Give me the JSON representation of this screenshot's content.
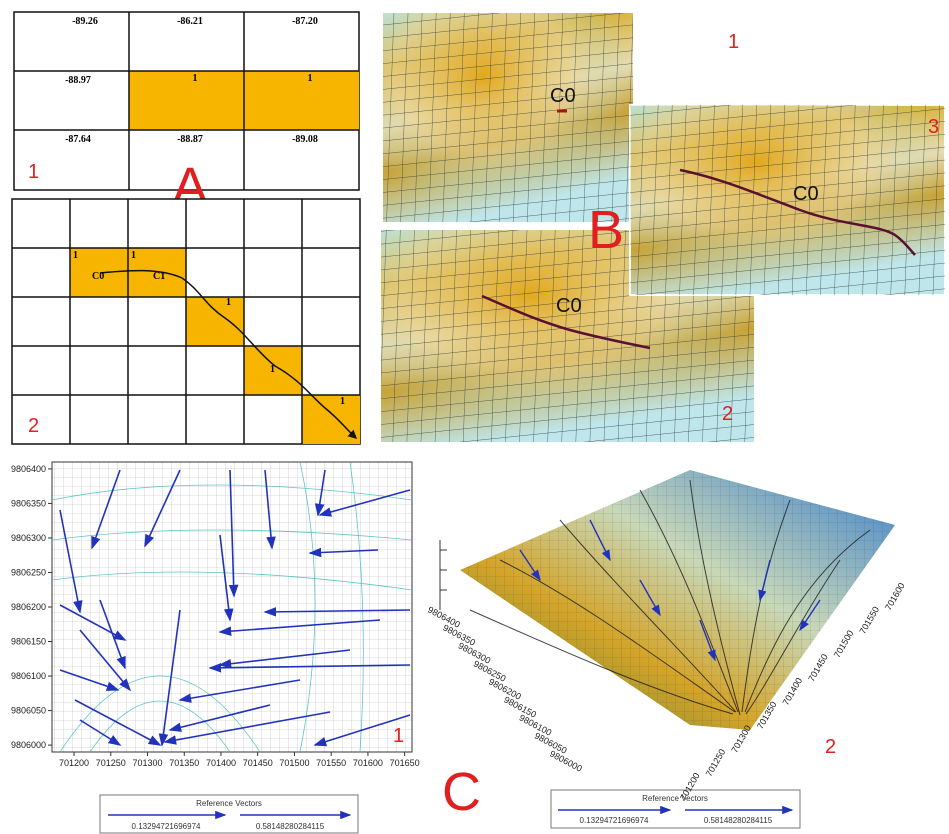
{
  "panel_labels": {
    "a": "A",
    "b": "B",
    "c": "C"
  },
  "a1": {
    "label": "1",
    "cells": [
      [
        "-89.26",
        "-86.21",
        "-87.20"
      ],
      [
        "-88.97",
        "1",
        "1"
      ],
      [
        "-87.64",
        "-88.87",
        "-89.08"
      ]
    ]
  },
  "a2": {
    "label": "2",
    "cell_marks": [
      "1",
      "1",
      "1",
      "1",
      "1"
    ],
    "nodes": [
      "C0",
      "C1"
    ]
  },
  "b1": {
    "label": "1",
    "node": "C0"
  },
  "b2": {
    "label": "2",
    "node": "C0"
  },
  "b3": {
    "label": "3",
    "node": "C0"
  },
  "c1": {
    "label": "1",
    "xlim": [
      701170,
      701660
    ],
    "ylim": [
      9805990,
      9806410
    ],
    "xticks": [
      701200,
      701250,
      701300,
      701350,
      701400,
      701450,
      701500,
      701550,
      701600,
      701650
    ],
    "yticks": [
      9806000,
      9806050,
      9806100,
      9806150,
      9806200,
      9806250,
      9806300,
      9806350,
      9806400
    ],
    "legend": {
      "title": "Reference Vectors",
      "values": [
        "0.13294721696974",
        "0.58148280284115"
      ]
    }
  },
  "c2": {
    "label": "2",
    "xticks": [
      701200,
      701250,
      701300,
      701350,
      701400,
      701450,
      701500,
      701550,
      701600
    ],
    "yticks": [
      9806000,
      9806050,
      9806100,
      9806150,
      9806200,
      9806250,
      9806300,
      9806350,
      9806400
    ],
    "legend": {
      "title": "Reference Vectors",
      "values": [
        "0.13294721696974",
        "0.58148280284115"
      ]
    }
  }
}
